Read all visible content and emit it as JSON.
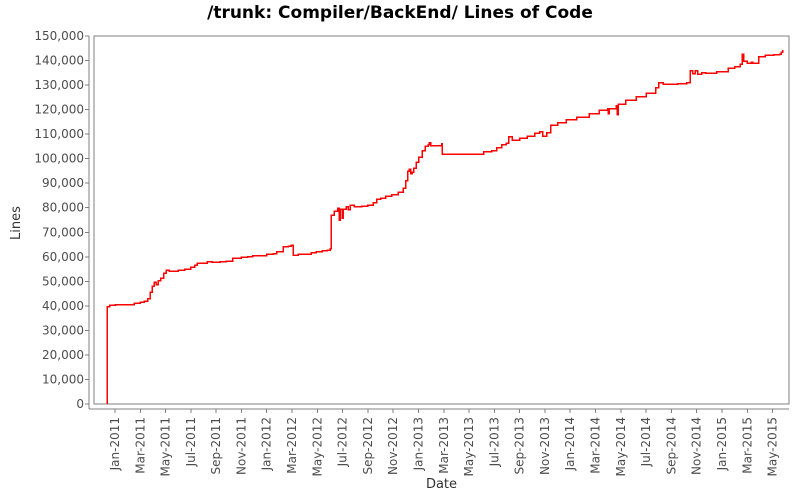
{
  "chart_data": {
    "type": "line",
    "title": "/trunk: Compiler/BackEnd/ Lines of Code",
    "xlabel": "Date",
    "ylabel": "Lines",
    "grid": "off",
    "legend": "none",
    "ylim": [
      0,
      150000
    ],
    "y_ticks": [
      0,
      10000,
      20000,
      30000,
      40000,
      50000,
      60000,
      70000,
      80000,
      90000,
      100000,
      110000,
      120000,
      130000,
      140000,
      150000
    ],
    "x_tick_labels": [
      "Jan-2011",
      "Mar-2011",
      "May-2011",
      "Jul-2011",
      "Sep-2011",
      "Nov-2011",
      "Jan-2012",
      "Mar-2012",
      "May-2012",
      "Jul-2012",
      "Sep-2012",
      "Nov-2012",
      "Jan-2013",
      "Mar-2013",
      "May-2013",
      "Jul-2013",
      "Sep-2013",
      "Nov-2013",
      "Jan-2014",
      "Mar-2014",
      "May-2014",
      "Jul-2014",
      "Sep-2014",
      "Nov-2014",
      "Jan-2015",
      "Mar-2015",
      "May-2015"
    ],
    "x_unit": "months-from-Jan-2011-tick (2 months between labeled ticks)",
    "colors": {
      "series": "#ff0000",
      "axis": "#808080",
      "tick_text": "#4d4d4d",
      "title_text": "#000000",
      "background": "#ffffff"
    },
    "series": [
      {
        "name": "Lines of Code",
        "color": "#ff0000",
        "interpolation": "step-after",
        "points": [
          [
            -0.63,
            0
          ],
          [
            -0.63,
            39700
          ],
          [
            -0.4,
            40200
          ],
          [
            0.0,
            40400
          ],
          [
            1.2,
            40500
          ],
          [
            1.5,
            41000
          ],
          [
            2.0,
            41400
          ],
          [
            2.3,
            41900
          ],
          [
            2.6,
            43000
          ],
          [
            2.8,
            45500
          ],
          [
            2.95,
            48000
          ],
          [
            3.1,
            49600
          ],
          [
            3.25,
            48700
          ],
          [
            3.4,
            50300
          ],
          [
            3.6,
            51200
          ],
          [
            3.85,
            53400
          ],
          [
            4.05,
            54500
          ],
          [
            4.3,
            54200
          ],
          [
            5.0,
            54500
          ],
          [
            5.5,
            54900
          ],
          [
            6.0,
            55700
          ],
          [
            6.3,
            56600
          ],
          [
            6.5,
            57300
          ],
          [
            7.0,
            57400
          ],
          [
            7.3,
            58000
          ],
          [
            7.7,
            57700
          ],
          [
            8.3,
            58000
          ],
          [
            8.8,
            58300
          ],
          [
            9.3,
            59400
          ],
          [
            10.0,
            59800
          ],
          [
            10.5,
            60100
          ],
          [
            10.9,
            60400
          ],
          [
            11.5,
            60500
          ],
          [
            12.0,
            61000
          ],
          [
            12.5,
            61300
          ],
          [
            12.8,
            62100
          ],
          [
            13.3,
            64100
          ],
          [
            13.7,
            64300
          ],
          [
            13.95,
            64800
          ],
          [
            14.1,
            60700
          ],
          [
            14.5,
            61000
          ],
          [
            15.0,
            61100
          ],
          [
            15.5,
            61700
          ],
          [
            15.9,
            62000
          ],
          [
            16.4,
            62400
          ],
          [
            16.8,
            62600
          ],
          [
            17.0,
            63400
          ],
          [
            17.1,
            77000
          ],
          [
            17.35,
            78600
          ],
          [
            17.6,
            79800
          ],
          [
            17.72,
            75000
          ],
          [
            17.82,
            79400
          ],
          [
            17.95,
            75700
          ],
          [
            18.05,
            79400
          ],
          [
            18.3,
            80400
          ],
          [
            18.45,
            79100
          ],
          [
            18.6,
            81100
          ],
          [
            18.9,
            80400
          ],
          [
            19.5,
            80700
          ],
          [
            20.0,
            81100
          ],
          [
            20.4,
            82000
          ],
          [
            20.7,
            83400
          ],
          [
            21.0,
            83900
          ],
          [
            21.4,
            84600
          ],
          [
            21.9,
            85300
          ],
          [
            22.4,
            86300
          ],
          [
            22.8,
            88000
          ],
          [
            23.0,
            91000
          ],
          [
            23.15,
            94800
          ],
          [
            23.28,
            95800
          ],
          [
            23.38,
            93800
          ],
          [
            23.5,
            94400
          ],
          [
            23.62,
            96100
          ],
          [
            23.8,
            98500
          ],
          [
            24.0,
            100600
          ],
          [
            24.3,
            103200
          ],
          [
            24.55,
            105100
          ],
          [
            24.75,
            105600
          ],
          [
            24.85,
            106500
          ],
          [
            24.95,
            105200
          ],
          [
            25.7,
            105300
          ],
          [
            25.82,
            106000
          ],
          [
            25.88,
            101900
          ],
          [
            29.05,
            101900
          ],
          [
            29.15,
            102900
          ],
          [
            29.8,
            103300
          ],
          [
            30.2,
            104500
          ],
          [
            30.6,
            105600
          ],
          [
            30.95,
            106300
          ],
          [
            31.15,
            108900
          ],
          [
            31.4,
            107600
          ],
          [
            32.0,
            108300
          ],
          [
            32.6,
            109100
          ],
          [
            33.2,
            110400
          ],
          [
            33.6,
            111000
          ],
          [
            33.82,
            109200
          ],
          [
            34.15,
            110600
          ],
          [
            34.45,
            113700
          ],
          [
            35.0,
            114700
          ],
          [
            35.7,
            115800
          ],
          [
            36.5,
            116900
          ],
          [
            37.5,
            118400
          ],
          [
            38.3,
            119800
          ],
          [
            38.95,
            120300
          ],
          [
            39.02,
            118400
          ],
          [
            39.1,
            120400
          ],
          [
            39.65,
            121600
          ],
          [
            39.72,
            118000
          ],
          [
            39.8,
            122100
          ],
          [
            40.4,
            123900
          ],
          [
            41.2,
            125200
          ],
          [
            42.0,
            126600
          ],
          [
            42.75,
            129000
          ],
          [
            43.0,
            131000
          ],
          [
            43.35,
            130300
          ],
          [
            44.5,
            130500
          ],
          [
            45.2,
            130900
          ],
          [
            45.5,
            135900
          ],
          [
            45.7,
            134700
          ],
          [
            45.9,
            135800
          ],
          [
            46.1,
            134500
          ],
          [
            46.4,
            135100
          ],
          [
            46.7,
            134800
          ],
          [
            47.3,
            134900
          ],
          [
            47.6,
            135400
          ],
          [
            48.5,
            136800
          ],
          [
            49.0,
            137500
          ],
          [
            49.45,
            138600
          ],
          [
            49.6,
            142500
          ],
          [
            49.72,
            139800
          ],
          [
            50.0,
            138900
          ],
          [
            50.3,
            139300
          ],
          [
            50.45,
            138900
          ],
          [
            50.9,
            141600
          ],
          [
            51.4,
            142200
          ],
          [
            52.1,
            142400
          ],
          [
            52.55,
            142600
          ],
          [
            52.7,
            143400
          ],
          [
            52.8,
            144300
          ]
        ]
      }
    ]
  }
}
